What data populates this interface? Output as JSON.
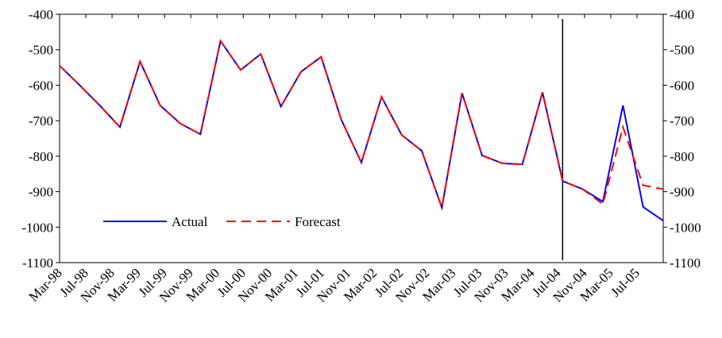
{
  "chart_data": {
    "type": "line",
    "xtick_labels": [
      "Mar-98",
      "Jul-98",
      "Nov-98",
      "Mar-99",
      "Jul-99",
      "Nov-99",
      "Mar-00",
      "Jul-00",
      "Nov-00",
      "Mar-01",
      "Jul-01",
      "Nov-01",
      "Mar-02",
      "Jul-02",
      "Nov-02",
      "Mar-03",
      "Jul-03",
      "Nov-03",
      "Mar-04",
      "Jul-04",
      "Nov-04",
      "Mar-05",
      "Jul-05"
    ],
    "series": [
      {
        "name": "Actual",
        "color": "#0000ff",
        "dash": false,
        "values": [
          -545,
          -600,
          -657,
          -718,
          -533,
          -657,
          -708,
          -738,
          -475,
          -557,
          -512,
          -660,
          -562,
          -520,
          -697,
          -818,
          -633,
          -740,
          -785,
          -945,
          -622,
          -798,
          -820,
          -823,
          -620,
          -870,
          -893,
          -928,
          -657,
          -943,
          -982
        ]
      },
      {
        "name": "Forecast",
        "color": "#ff0000",
        "dash": true,
        "values": [
          -545,
          -600,
          -657,
          -718,
          -533,
          -657,
          -708,
          -738,
          -475,
          -557,
          -512,
          -660,
          -562,
          -520,
          -697,
          -818,
          -633,
          -740,
          -785,
          -945,
          -622,
          -798,
          -820,
          -823,
          -620,
          -870,
          -893,
          -935,
          -718,
          -882,
          -893
        ]
      }
    ],
    "vline_index": 25,
    "ylim": [
      -1100,
      -400
    ],
    "yticks": [
      -1100,
      -1000,
      -900,
      -800,
      -700,
      -600,
      -500,
      -400
    ],
    "y2lim": [
      -1100,
      -400
    ],
    "y2ticks": [
      -1100,
      -1000,
      -900,
      -800,
      -700,
      -600,
      -500,
      -400
    ]
  }
}
